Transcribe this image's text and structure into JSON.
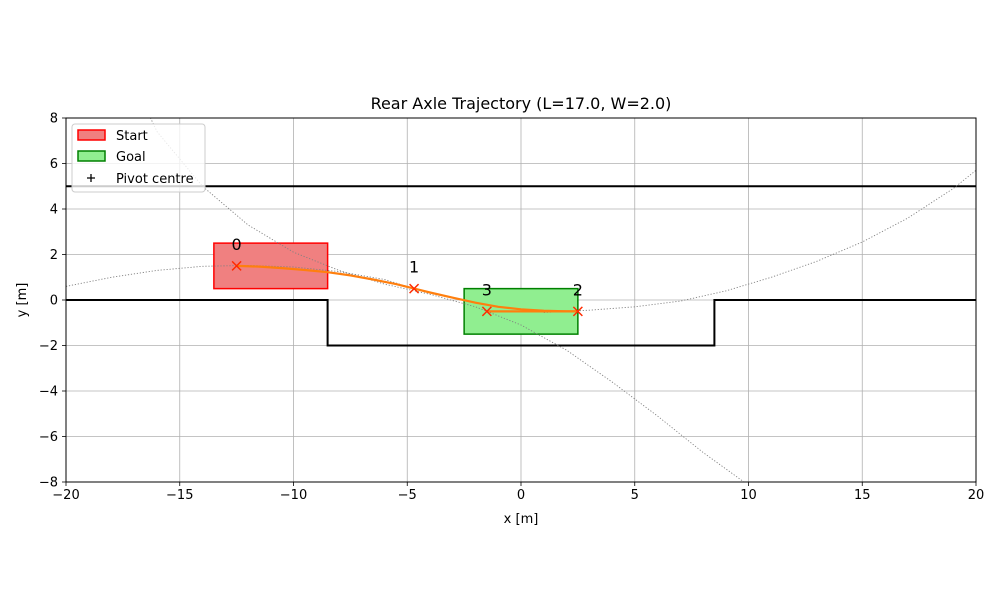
{
  "chart_data": {
    "type": "line",
    "title": "Rear Axle Trajectory (L=17.0, W=2.0)",
    "xlabel": "x [m]",
    "ylabel": "y [m]",
    "xlim": [
      -20,
      20
    ],
    "ylim": [
      -8,
      8
    ],
    "xticks": [
      -20,
      -15,
      -10,
      -5,
      0,
      5,
      10,
      15,
      20
    ],
    "yticks": [
      -8,
      -6,
      -4,
      -2,
      0,
      2,
      4,
      6,
      8
    ],
    "xtick_labels": [
      "−20",
      "−15",
      "−10",
      "−5",
      "0",
      "5",
      "10",
      "15",
      "20"
    ],
    "ytick_labels": [
      "−8",
      "−6",
      "−4",
      "−2",
      "0",
      "2",
      "4",
      "6",
      "8"
    ],
    "grid": true,
    "legend": {
      "position": "top-left",
      "entries": [
        {
          "label": "Start",
          "kind": "patch",
          "fill": "#f08080",
          "edge": "#ff0000"
        },
        {
          "label": "Goal",
          "kind": "patch",
          "fill": "#90ee90",
          "edge": "#008000"
        },
        {
          "label": "Pivot centre",
          "kind": "marker",
          "marker": "+"
        }
      ]
    },
    "boundaries": {
      "upper_line": {
        "y": 5.0,
        "x": [
          -20,
          20
        ]
      },
      "lower_profile": {
        "x": [
          -20,
          -8.5,
          -8.5,
          8.5,
          8.5,
          20
        ],
        "y": [
          0,
          0,
          -2,
          -2,
          0,
          0
        ]
      }
    },
    "start_box": {
      "x": [
        -13.5,
        -8.5
      ],
      "y": [
        0.5,
        2.5
      ]
    },
    "goal_box": {
      "x": [
        -2.5,
        2.5
      ],
      "y": [
        -1.5,
        0.5
      ]
    },
    "waypoints": [
      {
        "label": "0",
        "x": -12.5,
        "y": 1.5
      },
      {
        "label": "1",
        "x": -4.7,
        "y": 0.5
      },
      {
        "label": "2",
        "x": 2.5,
        "y": -0.5
      },
      {
        "label": "3",
        "x": -1.5,
        "y": -0.5
      }
    ],
    "series": [
      {
        "color": "#ff7f0e",
        "x": [
          -12.5,
          -11.5,
          -10.5,
          -9.5,
          -8.5,
          -7.5,
          -6.5,
          -5.5,
          -4.7,
          -4.0,
          -3.0,
          -2.0,
          -1.0,
          0.0,
          1.0,
          2.0,
          2.5
        ],
        "y": [
          1.5,
          1.47,
          1.4,
          1.32,
          1.22,
          1.08,
          0.9,
          0.7,
          0.5,
          0.33,
          0.1,
          -0.12,
          -0.3,
          -0.41,
          -0.47,
          -0.5,
          -0.5
        ]
      },
      {
        "color": "#ff7f0e",
        "x": [
          2.5,
          -1.5
        ],
        "y": [
          -0.5,
          -0.5
        ]
      }
    ],
    "pivot_arcs": [
      {
        "color": "#808080",
        "x": [
          -20,
          -18,
          -16,
          -14,
          -12,
          -10,
          -8,
          -6,
          -4.7
        ],
        "y": [
          0.6,
          1.0,
          1.3,
          1.48,
          1.52,
          1.45,
          1.25,
          0.9,
          0.5
        ]
      },
      {
        "color": "#808080",
        "x": [
          -20,
          -18,
          -16,
          -14,
          -12,
          -10,
          -8,
          -6,
          -4,
          -2,
          0,
          2,
          4,
          6,
          8,
          9.8
        ],
        "y": [
          18,
          11.6,
          7.4,
          5.0,
          3.3,
          2.1,
          1.3,
          0.7,
          0.25,
          -0.3,
          -1.1,
          -2.2,
          -3.6,
          -5.1,
          -6.7,
          -8.0
        ]
      },
      {
        "color": "#808080",
        "x": [
          1,
          3,
          5,
          7,
          9,
          11,
          13,
          15,
          17,
          19,
          20
        ],
        "y": [
          -0.55,
          -0.45,
          -0.3,
          -0.05,
          0.4,
          1.0,
          1.7,
          2.55,
          3.6,
          4.9,
          5.7
        ]
      }
    ]
  }
}
